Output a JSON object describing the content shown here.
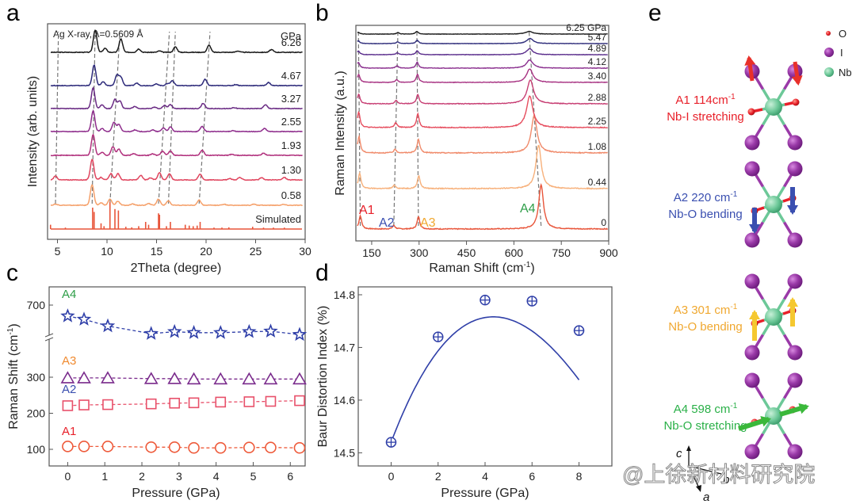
{
  "panels": {
    "a": "a",
    "b": "b",
    "c": "c",
    "d": "d",
    "e": "e"
  },
  "chart_data": [
    {
      "id": "a",
      "type": "line",
      "title": "",
      "annotation": "Ag X-ray, λ=0.5609 Å",
      "xlabel": "2Theta (degree)",
      "ylabel": "Intensity (arb. units)",
      "xlim": [
        4,
        30
      ],
      "xticks": [
        5,
        10,
        15,
        20,
        25,
        30
      ],
      "unit_label": "GPa",
      "series": [
        {
          "name": "6.26",
          "color": "#1a1a1a",
          "peaks": [
            [
              8.8,
              1.0
            ],
            [
              9.8,
              0.18
            ],
            [
              11.4,
              0.6
            ],
            [
              13.2,
              0.15
            ],
            [
              15.3,
              0.06
            ],
            [
              16.9,
              0.25
            ],
            [
              20.3,
              0.32
            ],
            [
              23.2,
              0.06
            ],
            [
              26.6,
              0.12
            ]
          ]
        },
        {
          "name": "4.67",
          "color": "#2d2a7a",
          "peaks": [
            [
              8.7,
              1.0
            ],
            [
              9.6,
              0.18
            ],
            [
              11.0,
              0.5
            ],
            [
              11.4,
              0.4
            ],
            [
              13.0,
              0.12
            ],
            [
              15.0,
              0.08
            ],
            [
              16.1,
              0.1
            ],
            [
              16.6,
              0.24
            ],
            [
              19.9,
              0.3
            ],
            [
              23.0,
              0.05
            ],
            [
              26.3,
              0.15
            ]
          ]
        },
        {
          "name": "3.27",
          "color": "#6a2b84",
          "peaks": [
            [
              8.6,
              1.0
            ],
            [
              9.5,
              0.18
            ],
            [
              10.8,
              0.45
            ],
            [
              11.3,
              0.38
            ],
            [
              12.8,
              0.1
            ],
            [
              14.8,
              0.07
            ],
            [
              15.8,
              0.15
            ],
            [
              16.4,
              0.2
            ],
            [
              19.7,
              0.25
            ],
            [
              22.8,
              0.05
            ],
            [
              26.0,
              0.18
            ]
          ]
        },
        {
          "name": "2.55",
          "color": "#8e2d8c",
          "peaks": [
            [
              8.6,
              1.0
            ],
            [
              9.5,
              0.15
            ],
            [
              10.7,
              0.45
            ],
            [
              11.2,
              0.35
            ],
            [
              12.8,
              0.08
            ],
            [
              14.6,
              0.08
            ],
            [
              15.7,
              0.18
            ],
            [
              16.4,
              0.22
            ],
            [
              19.6,
              0.25
            ],
            [
              22.7,
              0.05
            ],
            [
              25.9,
              0.15
            ]
          ]
        },
        {
          "name": "1.93",
          "color": "#b02f7c",
          "peaks": [
            [
              8.6,
              1.0
            ],
            [
              9.5,
              0.15
            ],
            [
              10.6,
              0.42
            ],
            [
              11.2,
              0.3
            ],
            [
              12.7,
              0.08
            ],
            [
              14.6,
              0.07
            ],
            [
              15.6,
              0.2
            ],
            [
              16.4,
              0.22
            ],
            [
              19.6,
              0.25
            ],
            [
              22.6,
              0.05
            ],
            [
              25.8,
              0.1
            ]
          ]
        },
        {
          "name": "1.30",
          "color": "#e0455e",
          "peaks": [
            [
              4.8,
              0.18
            ],
            [
              8.5,
              1.0
            ],
            [
              9.4,
              0.12
            ],
            [
              10.4,
              0.3
            ],
            [
              11.1,
              0.3
            ],
            [
              13.4,
              0.22
            ],
            [
              14.4,
              0.1
            ],
            [
              15.3,
              0.35
            ],
            [
              16.3,
              0.3
            ],
            [
              19.4,
              0.28
            ],
            [
              22.4,
              0.06
            ],
            [
              23.4,
              0.12
            ],
            [
              25.6,
              0.1
            ],
            [
              27.9,
              0.12
            ]
          ]
        },
        {
          "name": "0.58",
          "color": "#f5a06a",
          "peaks": [
            [
              4.8,
              0.05
            ],
            [
              8.5,
              1.0
            ],
            [
              9.4,
              0.12
            ],
            [
              10.3,
              0.3
            ],
            [
              11.1,
              0.2
            ],
            [
              12.6,
              0.06
            ],
            [
              14.2,
              0.08
            ],
            [
              15.2,
              0.3
            ],
            [
              16.2,
              0.22
            ],
            [
              19.3,
              0.25
            ],
            [
              21.8,
              0.05
            ],
            [
              24.8,
              0.05
            ],
            [
              27.8,
              0.04
            ]
          ]
        },
        {
          "name": "Simulated",
          "color": "#e8553a",
          "sticks": [
            [
              4.3,
              0.15
            ],
            [
              5.8,
              0.05
            ],
            [
              8.55,
              0.75
            ],
            [
              8.7,
              0.6
            ],
            [
              9.4,
              0.2
            ],
            [
              9.7,
              0.1
            ],
            [
              10.3,
              0.95
            ],
            [
              10.8,
              0.7
            ],
            [
              11.15,
              0.65
            ],
            [
              11.9,
              0.08
            ],
            [
              12.5,
              0.06
            ],
            [
              13.2,
              0.1
            ],
            [
              13.9,
              0.25
            ],
            [
              14.2,
              0.15
            ],
            [
              15.2,
              0.55
            ],
            [
              15.3,
              0.5
            ],
            [
              16.0,
              0.1
            ],
            [
              16.4,
              0.25
            ],
            [
              17.9,
              0.15
            ],
            [
              18.3,
              0.12
            ],
            [
              18.7,
              0.1
            ],
            [
              19.1,
              0.12
            ],
            [
              19.4,
              0.25
            ],
            [
              20.8,
              0.05
            ],
            [
              21.6,
              0.05
            ],
            [
              22.3,
              0.06
            ],
            [
              24.7,
              0.08
            ],
            [
              25.8,
              0.05
            ],
            [
              26.8,
              0.05
            ],
            [
              27.9,
              0.05
            ]
          ]
        }
      ],
      "guide_lines": [
        [
          [
            4.8,
            1
          ],
          [
            5.1,
            7
          ]
        ],
        [
          [
            8.5,
            1
          ],
          [
            8.8,
            7
          ]
        ],
        [
          [
            10.3,
            1
          ],
          [
            11.3,
            7
          ]
        ],
        [
          [
            15.2,
            1
          ],
          [
            16.3,
            7
          ]
        ],
        [
          [
            16.2,
            1
          ],
          [
            16.9,
            7
          ]
        ],
        [
          [
            19.3,
            1
          ],
          [
            20.4,
            7.3
          ]
        ]
      ]
    },
    {
      "id": "b",
      "type": "line",
      "xlabel": "Raman Shift (cm⁻¹)",
      "xlabel_base": "Raman Shift (cm",
      "xlabel_sup": "-1",
      "xlabel_end": ")",
      "ylabel": "Raman Intensity (a.u.)",
      "xlim": [
        100,
        900
      ],
      "xticks": [
        150,
        300,
        450,
        600,
        750,
        900
      ],
      "series": [
        {
          "name": "0",
          "color": "#e8553a",
          "peaks": [
            [
              114,
              0.3,
              5
            ],
            [
              220,
              0.08,
              5
            ],
            [
              298,
              0.28,
              5
            ],
            [
              686,
              1.0,
              9
            ]
          ]
        },
        {
          "name": "0.44",
          "color": "#f7b07a",
          "peaks": [
            [
              112,
              0.35,
              5
            ],
            [
              222,
              0.08,
              5
            ],
            [
              299,
              0.3,
              5
            ],
            [
              678,
              1.0,
              10
            ]
          ]
        },
        {
          "name": "1.08",
          "color": "#f08a6a",
          "peaks": [
            [
              110,
              0.38,
              5
            ],
            [
              224,
              0.08,
              5
            ],
            [
              298,
              0.32,
              5
            ],
            [
              664,
              0.85,
              11
            ]
          ]
        },
        {
          "name": "2.25",
          "color": "#e64d5e",
          "peaks": [
            [
              109,
              0.4,
              5
            ],
            [
              226,
              0.12,
              5
            ],
            [
              296,
              0.35,
              5
            ],
            [
              650,
              0.8,
              12
            ]
          ]
        },
        {
          "name": "2.88",
          "color": "#c73e73",
          "peaks": [
            [
              109,
              0.3,
              5
            ],
            [
              227,
              0.1,
              5
            ],
            [
              296,
              0.3,
              5
            ],
            [
              652,
              0.75,
              12
            ]
          ]
        },
        {
          "name": "3.40",
          "color": "#a73282",
          "peaks": [
            [
              109,
              0.3,
              5
            ],
            [
              229,
              0.1,
              5
            ],
            [
              295,
              0.3,
              5
            ],
            [
              650,
              0.5,
              12
            ]
          ]
        },
        {
          "name": "4.12",
          "color": "#8a2f8e",
          "peaks": [
            [
              108,
              0.25,
              5
            ],
            [
              230,
              0.1,
              5
            ],
            [
              294,
              0.25,
              5
            ],
            [
              650,
              0.35,
              12
            ]
          ]
        },
        {
          "name": "4.89",
          "color": "#5a2d8c",
          "peaks": [
            [
              108,
              0.18,
              5
            ],
            [
              231,
              0.1,
              5
            ],
            [
              294,
              0.2,
              5
            ],
            [
              650,
              0.3,
              12
            ]
          ]
        },
        {
          "name": "5.47",
          "color": "#2e2c7a",
          "peaks": [
            [
              108,
              0.16,
              5
            ],
            [
              232,
              0.1,
              5
            ],
            [
              294,
              0.2,
              5
            ],
            [
              651,
              0.3,
              12
            ]
          ]
        },
        {
          "name": "6.25 GPa",
          "color": "#1a1a1a",
          "peaks": [
            [
              108,
              0.1,
              5
            ],
            [
              233,
              0.08,
              5
            ],
            [
              293,
              0.15,
              5
            ],
            [
              648,
              0.15,
              14
            ]
          ]
        }
      ],
      "mode_labels": [
        {
          "text": "A1",
          "color": "#e8202a"
        },
        {
          "text": "A2",
          "color": "#3a4fb0"
        },
        {
          "text": "A3",
          "color": "#f0a830"
        },
        {
          "text": "A4",
          "color": "#2e9e48"
        }
      ]
    },
    {
      "id": "c",
      "type": "scatter",
      "xlabel": "Pressure (GPa)",
      "ylabel_base": "Raman Shift (cm",
      "ylabel_sup": "-1",
      "ylabel_end": ")",
      "xlim": [
        -0.5,
        6.4
      ],
      "xticks": [
        0,
        1,
        2,
        3,
        4,
        5,
        6
      ],
      "yticks": [
        100,
        200,
        300,
        700
      ],
      "y_break": true,
      "x": [
        0,
        0.44,
        1.08,
        2.25,
        2.88,
        3.4,
        4.12,
        4.89,
        5.47,
        6.25
      ],
      "series": [
        {
          "name": "A4",
          "marker": "star",
          "color": "#2f3fa8",
          "label_color": "#2e9e48",
          "values": [
            677,
            670,
            656,
            640,
            644,
            642,
            642,
            644,
            645,
            638
          ]
        },
        {
          "name": "A3",
          "marker": "triangle",
          "color": "#7a2b8c",
          "label_color": "#f08a30",
          "values": [
            298,
            298,
            298,
            296,
            296,
            295,
            295,
            295,
            295,
            295
          ]
        },
        {
          "name": "A2",
          "marker": "square",
          "color": "#e8506a",
          "label_color": "#3a4fb0",
          "values": [
            221,
            223,
            224,
            226,
            228,
            229,
            231,
            232,
            233,
            235
          ]
        },
        {
          "name": "A1",
          "marker": "circle",
          "color": "#ee5a3a",
          "label_color": "#e8202a",
          "values": [
            108,
            108,
            108,
            106,
            106,
            104,
            104,
            105,
            105,
            104
          ]
        }
      ]
    },
    {
      "id": "d",
      "type": "scatter",
      "xlabel": "Pressure (GPa)",
      "ylabel": "Baur Distortion Index (%)",
      "xlim": [
        -1.4,
        9.4
      ],
      "ylim": [
        14.475,
        14.815
      ],
      "xticks": [
        0,
        2,
        4,
        6,
        8
      ],
      "yticks": [
        14.5,
        14.6,
        14.7,
        14.8
      ],
      "color": "#2f3fa8",
      "x": [
        0,
        2,
        4,
        6,
        8
      ],
      "values": [
        14.52,
        14.72,
        14.79,
        14.788,
        14.732
      ],
      "fit": "smooth curve"
    }
  ],
  "panel_e": {
    "legend": [
      {
        "label": "O",
        "color": "#e8202a"
      },
      {
        "label": "I",
        "color": "#8e2d9c"
      },
      {
        "label": "Nb",
        "color": "#5cc08a"
      }
    ],
    "modes": [
      {
        "line1": "A1  114cm",
        "sup": "-1",
        "line2": "Nb-I stretching",
        "color": "#e8202a",
        "arrow_color": "#e8302a"
      },
      {
        "line1": "A2 220 cm",
        "sup": "-1",
        "line2": "Nb-O bending",
        "color": "#3a4fb0",
        "arrow_color": "#3a4fb0"
      },
      {
        "line1": "A3 301 cm",
        "sup": "-1",
        "line2": "Nb-O bending",
        "color": "#f0a830",
        "arrow_color": "#f5c830"
      },
      {
        "line1": "A4 598 cm",
        "sup": "-1",
        "line2": "Nb-O stretching",
        "color": "#2ab048",
        "arrow_color": "#3ab83a"
      }
    ],
    "axes": {
      "c": "c",
      "b": "b",
      "a": "a"
    }
  },
  "watermark": "@上徐新材料研究院"
}
